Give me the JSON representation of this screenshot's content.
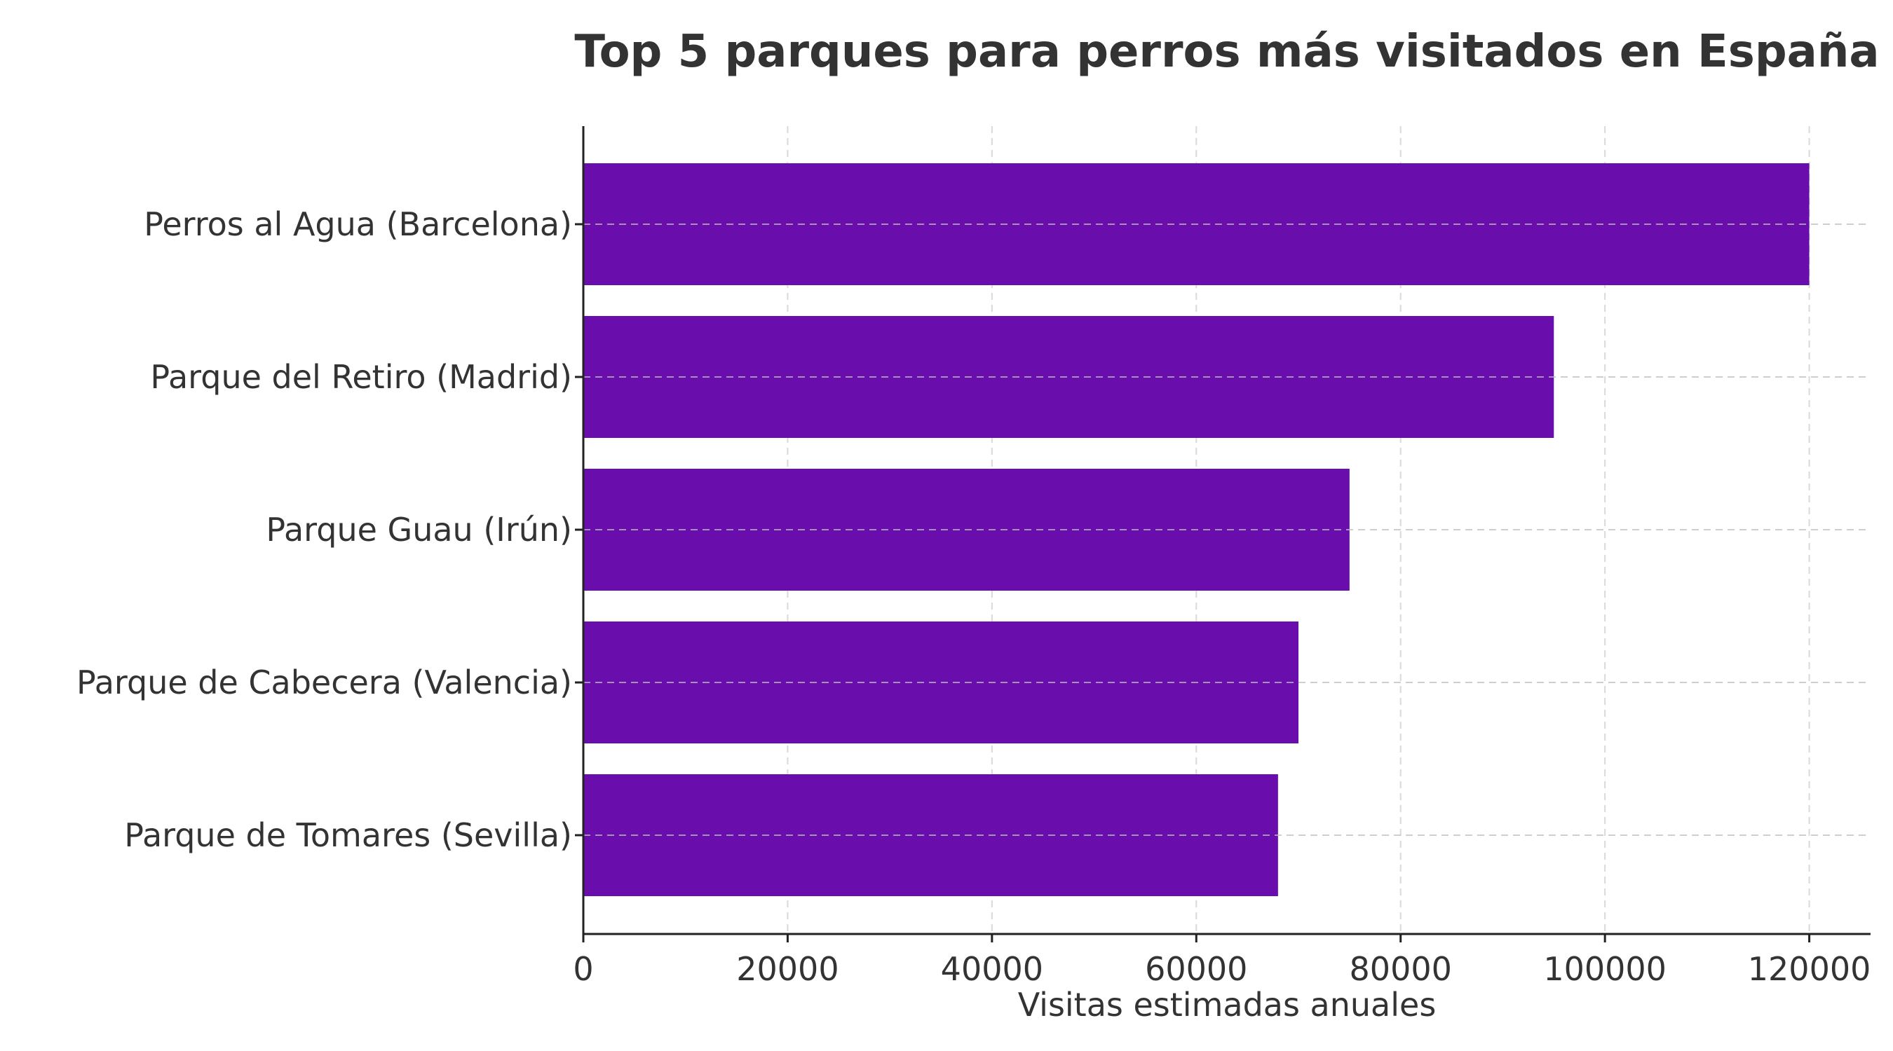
{
  "chart_data": {
    "type": "bar",
    "orientation": "horizontal",
    "title": "Top 5 parques para perros más visitados en España",
    "xlabel": "Visitas estimadas anuales",
    "ylabel": "",
    "categories": [
      "Perros al Agua (Barcelona)",
      "Parque del Retiro (Madrid)",
      "Parque Guau (Irún)",
      "Parque de Cabecera (Valencia)",
      "Parque de Tomares (Sevilla)"
    ],
    "values": [
      120000,
      95000,
      75000,
      70000,
      68000
    ],
    "xlim": [
      0,
      126000
    ],
    "xticks": [
      "0",
      "20000",
      "40000",
      "60000",
      "80000",
      "100000",
      "120000"
    ],
    "grid": true,
    "legend": "none",
    "colors": {
      "bar": "#6a0dad",
      "text": "#333333",
      "grid": "#cccccc",
      "axis": "#222222"
    }
  }
}
